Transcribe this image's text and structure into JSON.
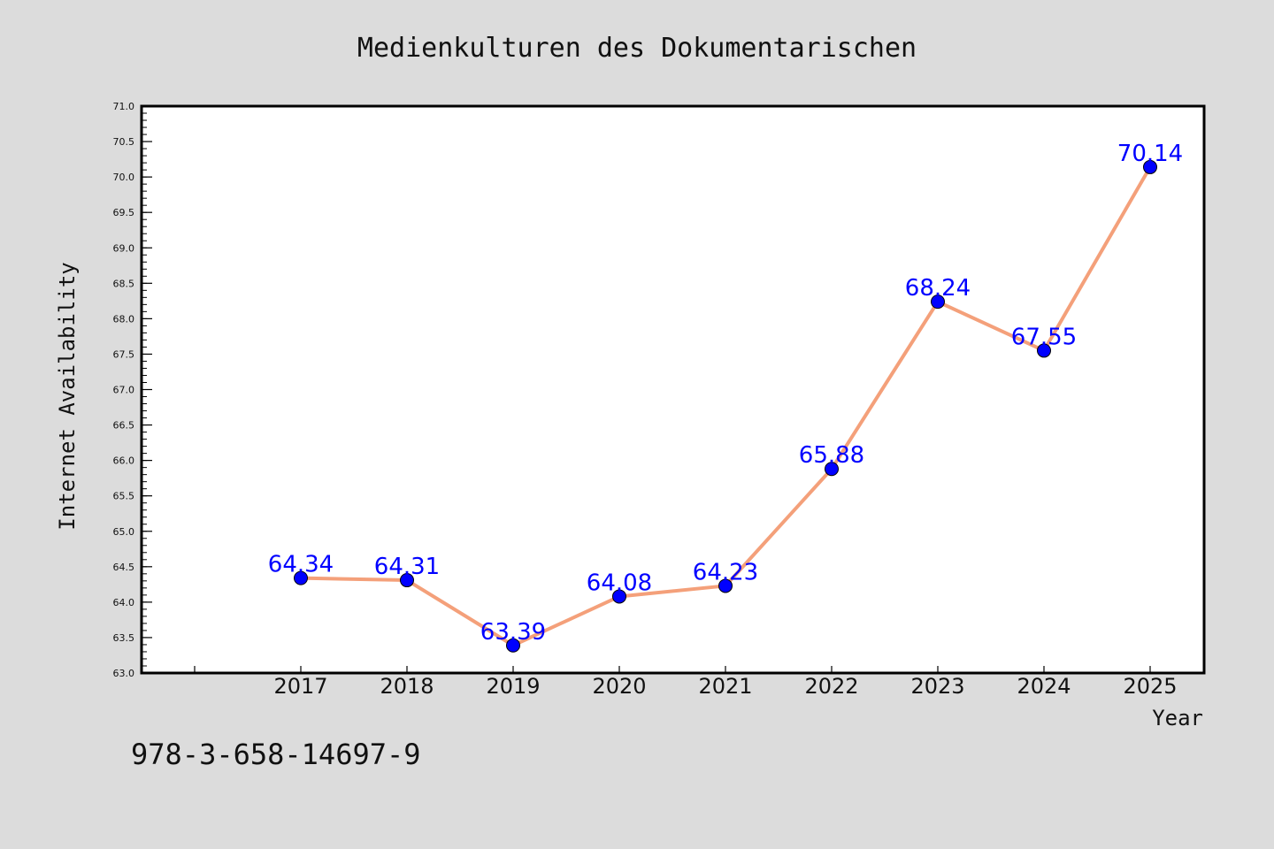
{
  "chart_data": {
    "type": "line",
    "title": "Medienkulturen des Dokumentarischen",
    "xlabel": "Year",
    "ylabel": "Internet Availability",
    "x": [
      "2017",
      "2018",
      "2019",
      "2020",
      "2021",
      "2022",
      "2023",
      "2024",
      "2025"
    ],
    "series": [
      {
        "values": [
          64.34,
          64.31,
          63.39,
          64.08,
          64.23,
          65.88,
          68.24,
          67.55,
          70.14
        ]
      }
    ],
    "ylim": [
      63.0,
      71.0
    ],
    "yticks": [
      "63.0",
      "63.5",
      "64.0",
      "64.5",
      "65.0",
      "65.5",
      "66.0",
      "66.5",
      "67.0",
      "67.5",
      "68.0",
      "68.5",
      "69.0",
      "69.5",
      "70.0",
      "70.5",
      "71.0"
    ],
    "data_labels": [
      "64.34",
      "64.31",
      "63.39",
      "64.08",
      "64.23",
      "65.88",
      "68.24",
      "67.55",
      "70.14"
    ],
    "grid": false,
    "legend": "none",
    "colors": {
      "background": "#dcdcdc",
      "plot_area": "#ffffff",
      "line": "#f4a07a",
      "marker": "#0000ff",
      "data_label": "#0000ff"
    }
  },
  "footer": {
    "isbn": "978-3-658-14697-9"
  }
}
